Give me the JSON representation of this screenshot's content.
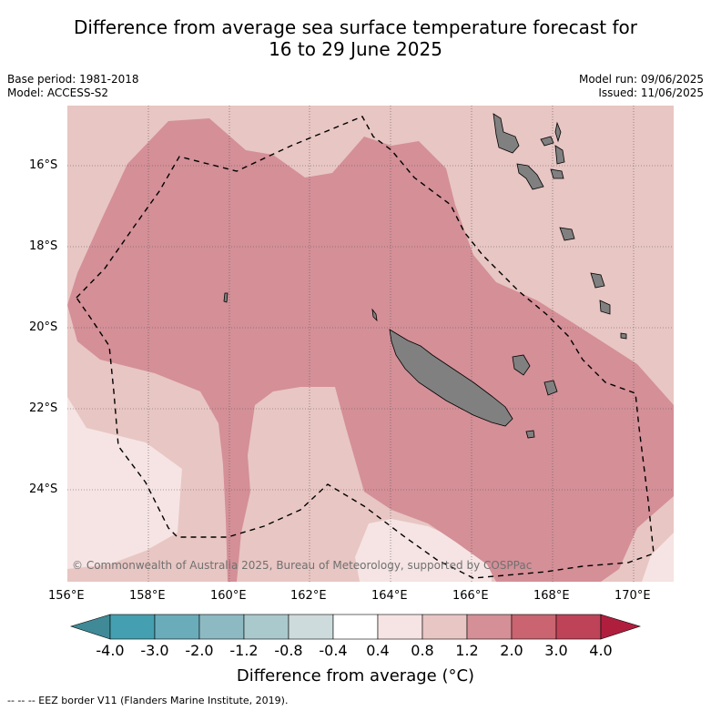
{
  "title": {
    "line1": "Difference from average sea surface temperature forecast for",
    "line2": "16 to 29 June 2025"
  },
  "meta_left": {
    "base_period": "Base period: 1981-2018",
    "model": "Model: ACCESS-S2"
  },
  "meta_right": {
    "model_run": "Model run: 09/06/2025",
    "issued": "Issued: 11/06/2025"
  },
  "map": {
    "lat_labels": [
      "16°S",
      "18°S",
      "20°S",
      "22°S",
      "24°S"
    ],
    "lon_labels": [
      "156°E",
      "158°E",
      "160°E",
      "162°E",
      "164°E",
      "166°E",
      "168°E",
      "170°E"
    ],
    "copyright": "© Commonwealth of Australia 2025, Bureau of Meteorology, supported by COSPPac",
    "colors": {
      "class_0_4_0_8": "#f5e4e3",
      "class_0_8_1_2": "#e8c6c3",
      "class_1_2_2_0": "#d48f97",
      "land": "#808080"
    }
  },
  "colorbar": {
    "labels": [
      "-4.0",
      "-3.0",
      "-2.0",
      "-1.2",
      "-0.8",
      "-0.4",
      "0.4",
      "0.8",
      "1.2",
      "2.0",
      "3.0",
      "4.0"
    ],
    "colors": [
      "#3f8a96",
      "#44a0b0",
      "#6aacba",
      "#8db9c3",
      "#a9c9cd",
      "#cddbdd",
      "#ffffff",
      "#f5e4e3",
      "#e8c6c3",
      "#d48f97",
      "#c96470",
      "#bf4358",
      "#b01e3e"
    ],
    "title": "Difference from average (°C)"
  },
  "footer": {
    "eez_legend": "--  --  -- EEZ border V11 (Flanders Marine Institute, 2019)."
  }
}
